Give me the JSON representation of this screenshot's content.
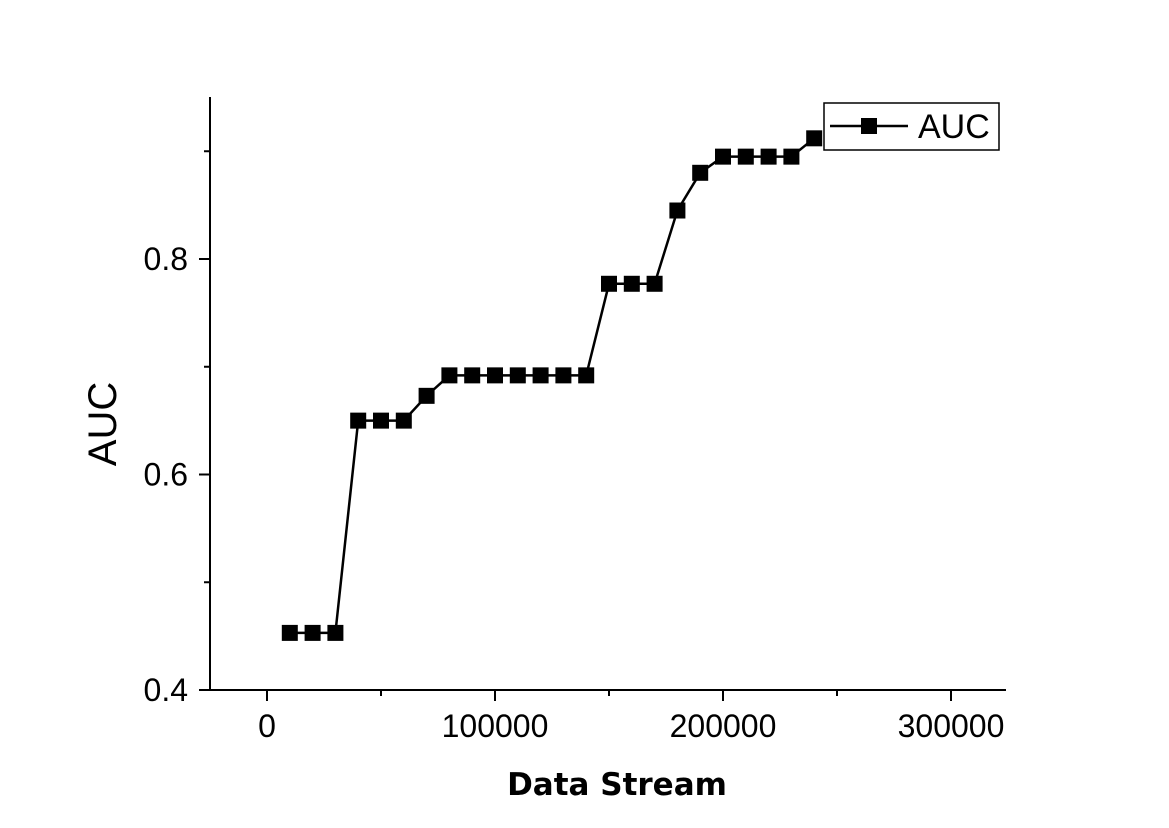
{
  "chart_data": {
    "type": "line",
    "xlabel": "Data Stream",
    "ylabel": "AUC",
    "xlim": [
      -25000,
      325000
    ],
    "ylim": [
      0.4,
      0.95
    ],
    "x_ticks": [
      0,
      100000,
      200000,
      300000
    ],
    "y_ticks": [
      0.4,
      0.6,
      0.8
    ],
    "grid": false,
    "legend": {
      "position": "top-right",
      "entries": [
        "AUC"
      ]
    },
    "marker": "square",
    "color": "#000000",
    "series": [
      {
        "name": "AUC",
        "x": [
          10000,
          20000,
          30000,
          40000,
          50000,
          60000,
          70000,
          80000,
          90000,
          100000,
          110000,
          120000,
          130000,
          140000,
          150000,
          160000,
          170000,
          180000,
          190000,
          200000,
          210000,
          220000,
          230000,
          240000
        ],
        "values": [
          0.453,
          0.453,
          0.453,
          0.65,
          0.65,
          0.65,
          0.673,
          0.692,
          0.692,
          0.692,
          0.692,
          0.692,
          0.692,
          0.692,
          0.777,
          0.777,
          0.777,
          0.845,
          0.88,
          0.895,
          0.895,
          0.895,
          0.895,
          0.912
        ]
      }
    ]
  }
}
